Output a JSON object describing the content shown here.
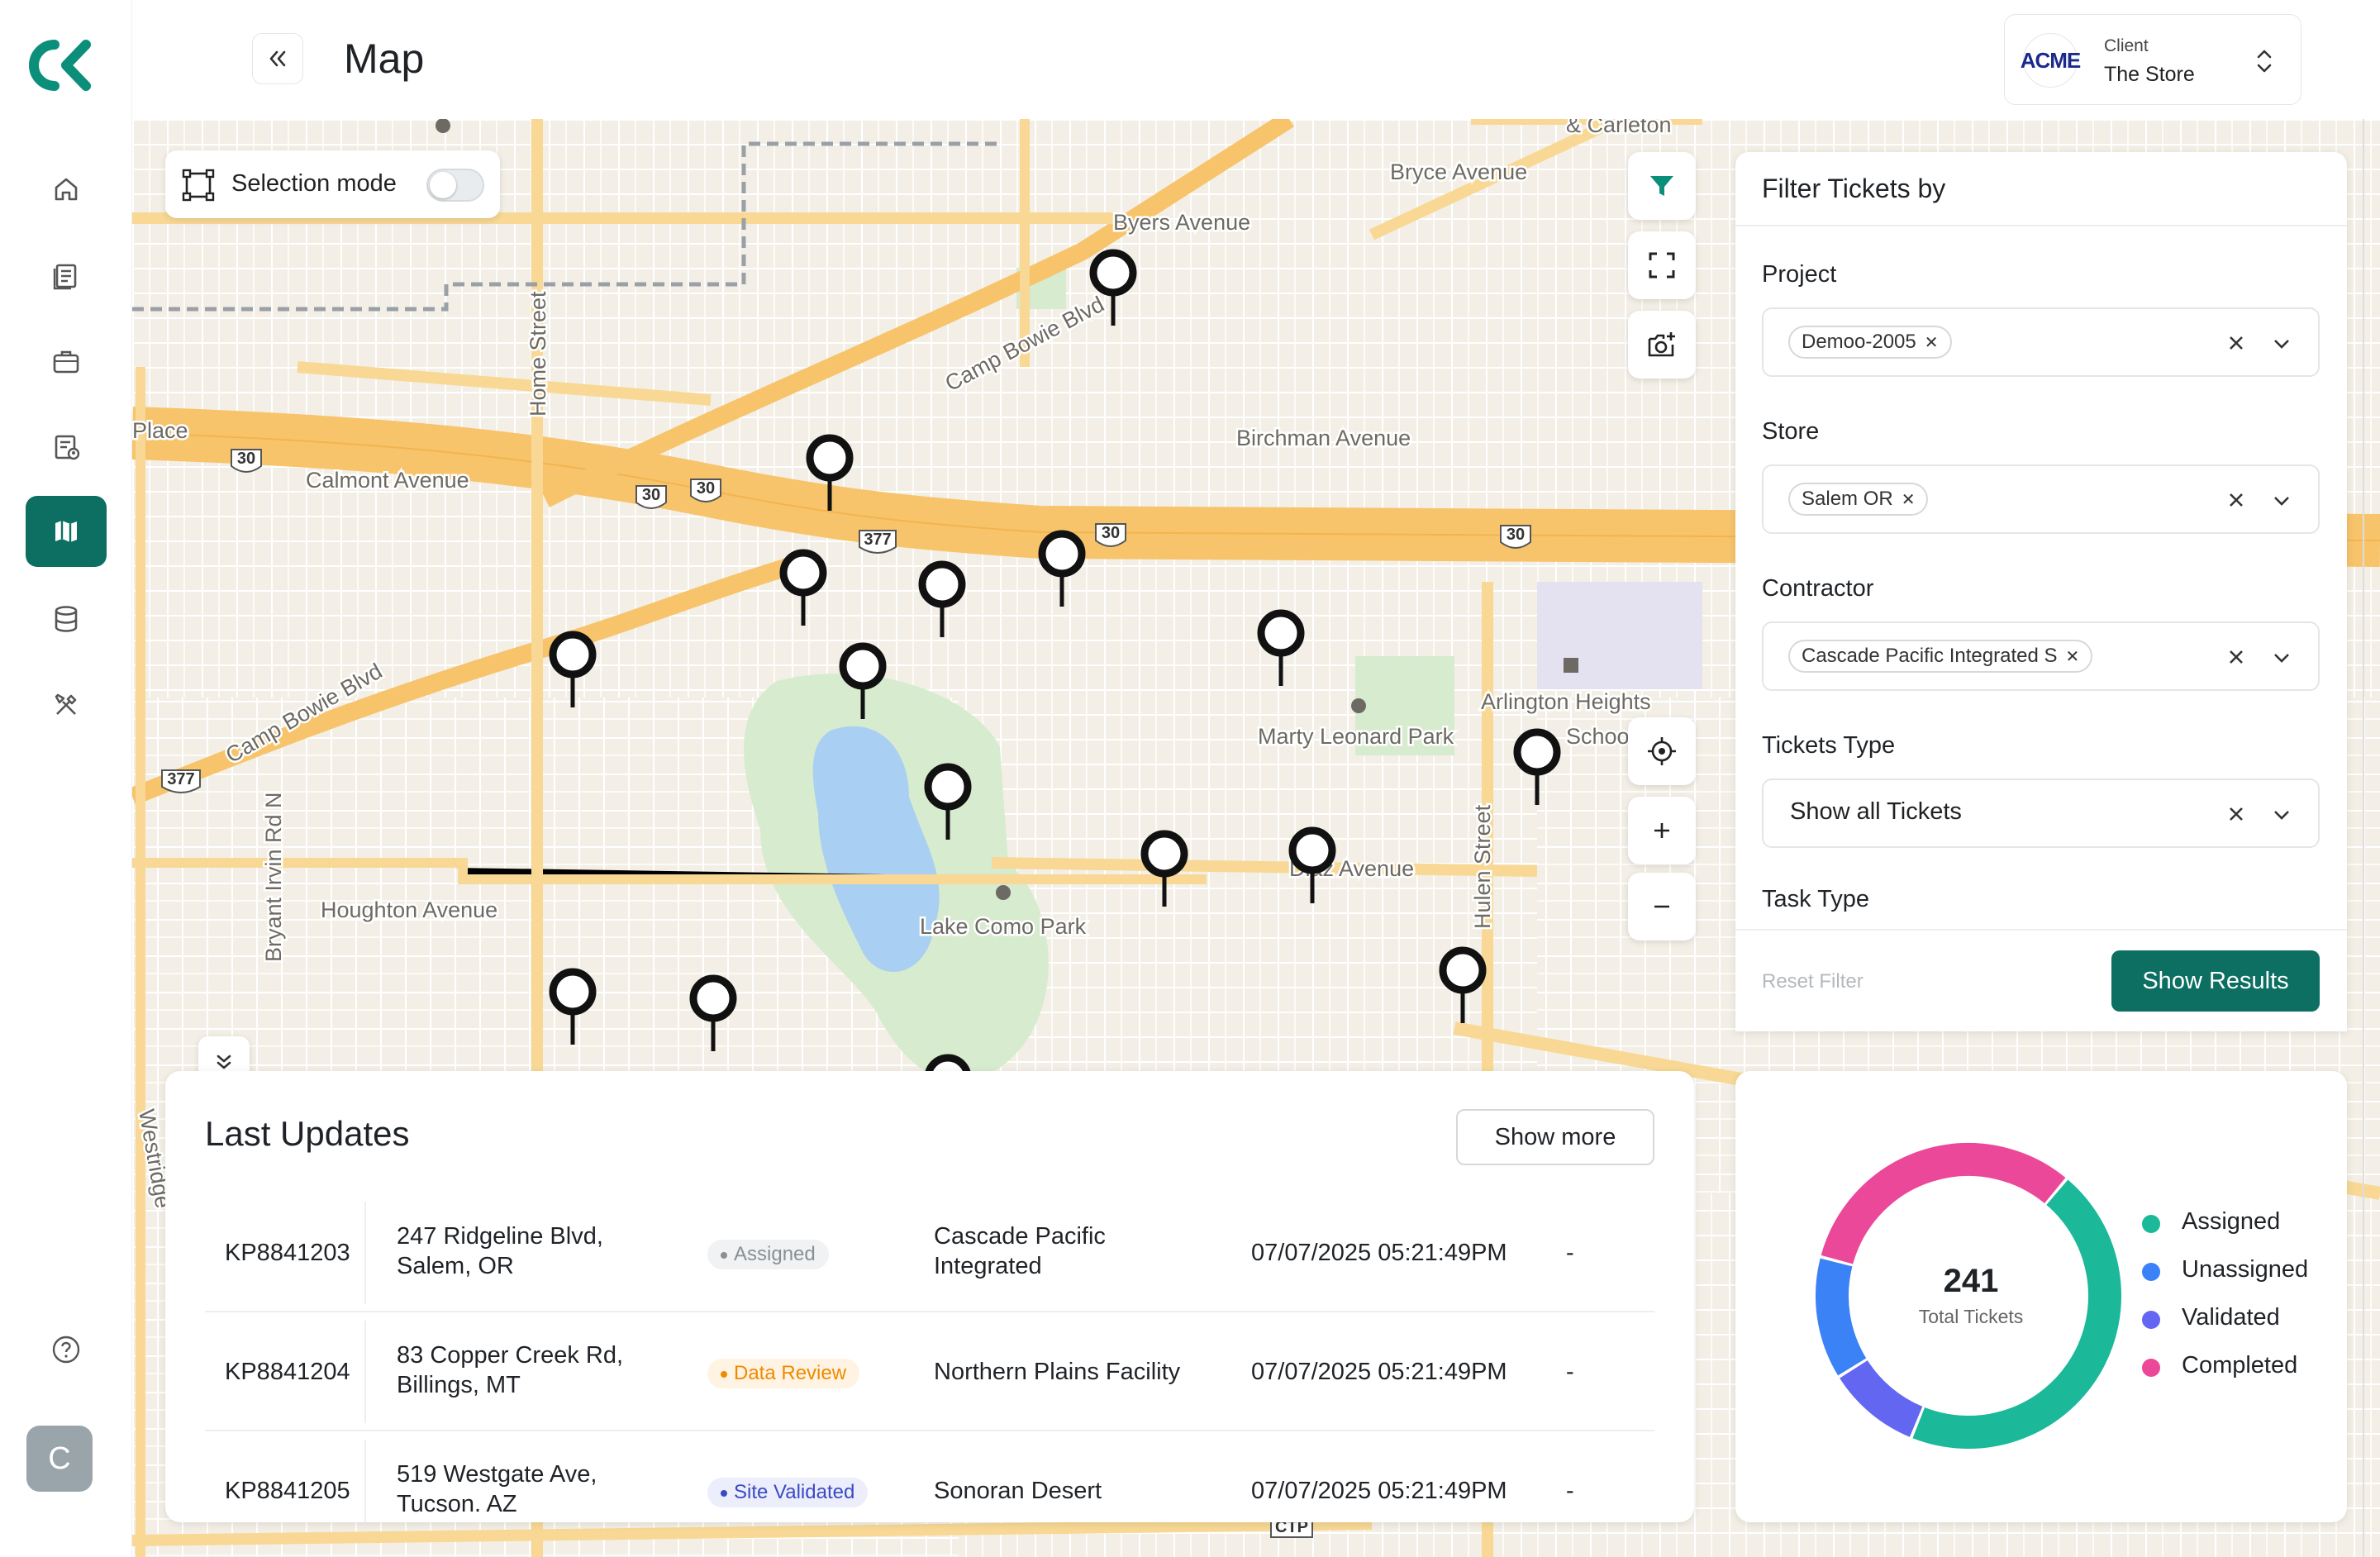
{
  "app": {
    "title": "Map"
  },
  "client": {
    "label": "Client",
    "name": "The Store",
    "logo_text": "ACME"
  },
  "sidebar": {
    "items": [
      {
        "icon": "home-icon"
      },
      {
        "icon": "document-list-icon"
      },
      {
        "icon": "briefcase-icon"
      },
      {
        "icon": "ticket-user-icon"
      },
      {
        "icon": "map-icon",
        "active": true
      },
      {
        "icon": "database-icon"
      },
      {
        "icon": "tools-icon"
      }
    ],
    "help_icon": "help-icon",
    "avatar_initial": "C"
  },
  "map": {
    "selection_mode_label": "Selection mode",
    "selection_mode_on": false,
    "labels": [
      {
        "text": "& Carleton"
      },
      {
        "text": "Bryce Avenue"
      },
      {
        "text": "Byers Avenue"
      },
      {
        "text": "Camp Bowie Blvd"
      },
      {
        "text": "Home Street"
      },
      {
        "text": "Place"
      },
      {
        "text": "Calmont Avenue"
      },
      {
        "text": "Birchman Avenue"
      },
      {
        "text": "Camp Bowie Blvd"
      },
      {
        "text": "Arlington Heights"
      },
      {
        "text": "Marty Leonard Park"
      },
      {
        "text": "Schoo"
      },
      {
        "text": "Lake Como Park"
      },
      {
        "text": "Houghton Avenue"
      },
      {
        "text": "Bryant Irvin Rd N"
      },
      {
        "text": "Hulen Street"
      },
      {
        "text": "Diaz Avenue"
      },
      {
        "text": "Westridge"
      }
    ],
    "shields": [
      "30",
      "30",
      "30",
      "377",
      "30",
      "30",
      "377",
      "CTP"
    ]
  },
  "filter": {
    "title": "Filter Tickets by",
    "project": {
      "label": "Project",
      "chip": "Demoo-2005"
    },
    "store": {
      "label": "Store",
      "chip": "Salem OR"
    },
    "contractor": {
      "label": "Contractor",
      "chip": "Cascade Pacific Integrated S"
    },
    "tickets_type": {
      "label": "Tickets Type",
      "value": "Show all Tickets"
    },
    "task_type": {
      "label": "Task Type"
    },
    "reset_label": "Reset Filter",
    "submit_label": "Show Results"
  },
  "updates": {
    "title": "Last Updates",
    "show_more_label": "Show more",
    "rows": [
      {
        "id": "KP8841203",
        "addr1": "247 Ridgeline Blvd,",
        "addr2": "Salem, OR",
        "status": "Assigned",
        "status_color": "#8a8f93",
        "status_bg": "#f1f2f3",
        "contractor1": "Cascade Pacific",
        "contractor2": "Integrated",
        "date": "07/07/2025 05:21:49PM",
        "extra": "-"
      },
      {
        "id": "KP8841204",
        "addr1": "83 Copper Creek Rd,",
        "addr2": "Billings, MT",
        "status": "Data Review",
        "status_color": "#f08a00",
        "status_bg": "#fff3e3",
        "contractor1": "Northern Plains Facility",
        "contractor2": "",
        "date": "07/07/2025 05:21:49PM",
        "extra": "-"
      },
      {
        "id": "KP8841205",
        "addr1": "519 Westgate Ave,",
        "addr2": "Tucson. AZ",
        "status": "Site Validated",
        "status_color": "#3b49c4",
        "status_bg": "#eceefb",
        "contractor1": "Sonoran Desert",
        "contractor2": "",
        "date": "07/07/2025 05:21:49PM",
        "extra": "-"
      }
    ]
  },
  "stats": {
    "total": "241",
    "total_label": "Total Tickets",
    "legend": [
      {
        "name": "Assigned",
        "color": "#1bb89a"
      },
      {
        "name": "Unassigned",
        "color": "#3b82f6"
      },
      {
        "name": "Validated",
        "color": "#6366f1"
      },
      {
        "name": "Completed",
        "color": "#ec4899"
      }
    ],
    "segments": [
      {
        "name": "Assigned",
        "value": 0.45,
        "color": "#1bb89a"
      },
      {
        "name": "Validated",
        "value": 0.1,
        "color": "#6366f1"
      },
      {
        "name": "Unassigned",
        "value": 0.13,
        "color": "#3b82f6"
      },
      {
        "name": "Completed",
        "value": 0.32,
        "color": "#ec4899"
      }
    ]
  }
}
